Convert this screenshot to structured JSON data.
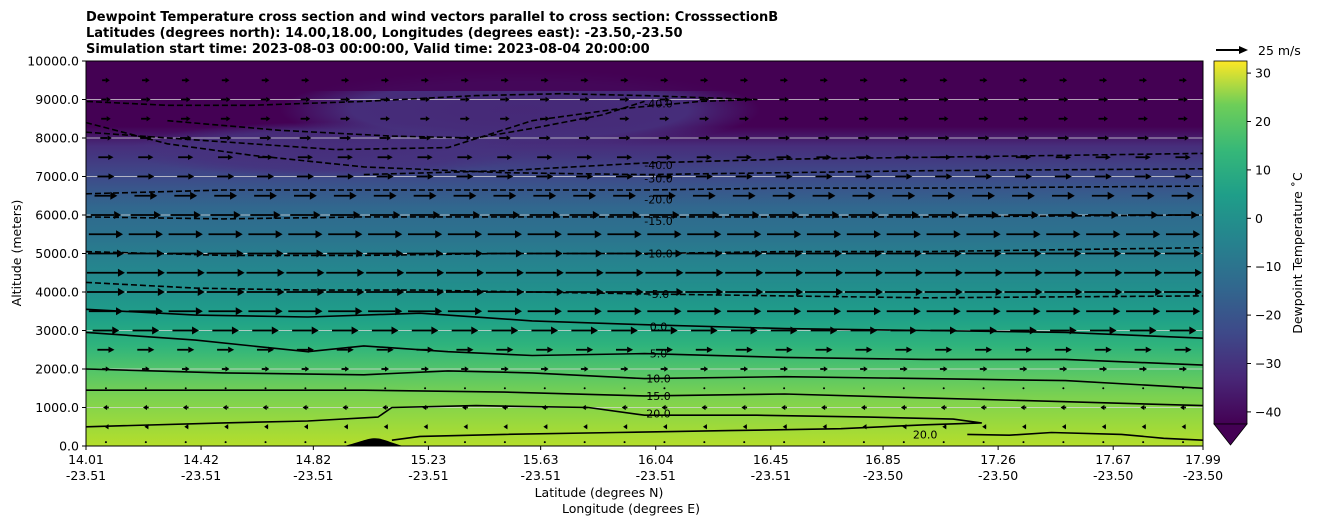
{
  "chart_data": {
    "type": "contour-cross-section",
    "title_lines": [
      "Dewpoint Temperature cross section and wind vectors parallel to cross section: CrosssectionB",
      "Latitudes (degrees north): 14.00,18.00, Longitudes (degrees east): -23.50,-23.50",
      "Simulation start time: 2023-08-03 00:00:00, Valid time: 2023-08-04 20:00:00"
    ],
    "ylabel": "Altitude (meters)",
    "xlabel_lines": [
      "Latitude (degrees N)",
      "Longitude (degrees E)"
    ],
    "ylim": [
      0,
      10000
    ],
    "y_ticks": [
      "0.0",
      "1000.0",
      "2000.0",
      "3000.0",
      "4000.0",
      "5000.0",
      "6000.0",
      "7000.0",
      "8000.0",
      "9000.0",
      "10000.0"
    ],
    "x_range": [
      14.01,
      17.99
    ],
    "x_ticks": [
      {
        "lat": "14.01",
        "lon": "-23.51"
      },
      {
        "lat": "14.42",
        "lon": "-23.51"
      },
      {
        "lat": "14.82",
        "lon": "-23.51"
      },
      {
        "lat": "15.23",
        "lon": "-23.51"
      },
      {
        "lat": "15.63",
        "lon": "-23.51"
      },
      {
        "lat": "16.04",
        "lon": "-23.51"
      },
      {
        "lat": "16.45",
        "lon": "-23.51"
      },
      {
        "lat": "16.85",
        "lon": "-23.50"
      },
      {
        "lat": "17.26",
        "lon": "-23.50"
      },
      {
        "lat": "17.67",
        "lon": "-23.50"
      },
      {
        "lat": "17.99",
        "lon": "-23.50"
      }
    ],
    "colorbar": {
      "label": "Dewpoint Temperature $^\\circ$C",
      "label_display": "Dewpoint Temperature ˚C",
      "range": [
        -42.5,
        32.5
      ],
      "ticks": [
        "−40",
        "−30",
        "−20",
        "−10",
        "0",
        "10",
        "20",
        "30"
      ],
      "extend": "min",
      "colormap": "viridis"
    },
    "quiver_key": "25 m/s",
    "contours": [
      {
        "label": "-40.0",
        "style": "dashed",
        "points": [
          [
            14.01,
            8150
          ],
          [
            14.4,
            7950
          ],
          [
            14.9,
            7700
          ],
          [
            15.3,
            7750
          ],
          [
            15.45,
            8100
          ],
          [
            15.6,
            8450
          ],
          [
            15.9,
            8750
          ],
          [
            16.2,
            8950
          ],
          [
            16.4,
            9000
          ],
          [
            16.0,
            9100
          ],
          [
            15.7,
            9150
          ],
          [
            15.4,
            9100
          ],
          [
            15.0,
            8950
          ],
          [
            14.6,
            8850
          ],
          [
            14.3,
            8850
          ],
          [
            14.01,
            8950
          ]
        ]
      },
      {
        "label": "-40.0",
        "style": "dashed",
        "points": [
          [
            14.3,
            8450
          ],
          [
            14.7,
            8200
          ],
          [
            15.1,
            8050
          ],
          [
            15.4,
            8000
          ],
          [
            15.6,
            8250
          ],
          [
            15.85,
            8600
          ],
          [
            16.0,
            8950
          ]
        ]
      },
      {
        "label": "-40.0",
        "style": "dashed",
        "points": [
          [
            15.0,
            7050
          ],
          [
            15.5,
            7150
          ],
          [
            16.0,
            7350
          ],
          [
            16.5,
            7450
          ],
          [
            17.0,
            7500
          ],
          [
            17.99,
            7600
          ]
        ]
      },
      {
        "label": "-30.0",
        "style": "dashed",
        "points": [
          [
            14.01,
            8400
          ],
          [
            14.3,
            7850
          ],
          [
            14.6,
            7550
          ],
          [
            15.0,
            7250
          ],
          [
            15.5,
            7100
          ],
          [
            16.0,
            7050
          ],
          [
            16.5,
            7100
          ],
          [
            17.0,
            7150
          ],
          [
            17.99,
            7200
          ]
        ]
      },
      {
        "label": "-20.0",
        "style": "dashed",
        "points": [
          [
            14.01,
            6550
          ],
          [
            14.5,
            6650
          ],
          [
            15.0,
            6650
          ],
          [
            15.5,
            6650
          ],
          [
            16.0,
            6650
          ],
          [
            16.5,
            6700
          ],
          [
            17.0,
            6700
          ],
          [
            17.99,
            6750
          ]
        ]
      },
      {
        "label": "-15.0",
        "style": "dashed",
        "points": [
          [
            14.01,
            5950
          ],
          [
            14.5,
            5900
          ],
          [
            15.0,
            5950
          ],
          [
            15.5,
            5950
          ],
          [
            16.0,
            5950
          ],
          [
            16.5,
            5950
          ],
          [
            17.0,
            5950
          ],
          [
            17.99,
            6000
          ]
        ]
      },
      {
        "label": "-10.0",
        "style": "dashed",
        "points": [
          [
            14.01,
            5050
          ],
          [
            14.5,
            4950
          ],
          [
            15.0,
            4950
          ],
          [
            15.5,
            5000
          ],
          [
            16.0,
            5000
          ],
          [
            16.5,
            5050
          ],
          [
            17.0,
            5050
          ],
          [
            17.99,
            5150
          ]
        ]
      },
      {
        "label": "-5.0",
        "style": "dashed",
        "points": [
          [
            14.01,
            4250
          ],
          [
            14.4,
            4100
          ],
          [
            14.8,
            4050
          ],
          [
            15.2,
            4050
          ],
          [
            15.6,
            4000
          ],
          [
            16.0,
            3950
          ],
          [
            16.5,
            3900
          ],
          [
            17.0,
            3850
          ],
          [
            17.99,
            3900
          ]
        ]
      },
      {
        "label": "0.0",
        "style": "solid",
        "points": [
          [
            14.01,
            3550
          ],
          [
            14.4,
            3400
          ],
          [
            14.8,
            3350
          ],
          [
            15.2,
            3450
          ],
          [
            15.6,
            3250
          ],
          [
            16.0,
            3150
          ],
          [
            16.5,
            3050
          ],
          [
            17.0,
            3000
          ],
          [
            17.5,
            2950
          ],
          [
            17.99,
            2800
          ]
        ]
      },
      {
        "label": "5.0",
        "style": "solid",
        "points": [
          [
            14.01,
            2950
          ],
          [
            14.4,
            2750
          ],
          [
            14.8,
            2450
          ],
          [
            15.0,
            2600
          ],
          [
            15.3,
            2450
          ],
          [
            15.6,
            2350
          ],
          [
            16.0,
            2400
          ],
          [
            16.5,
            2300
          ],
          [
            17.0,
            2250
          ],
          [
            17.5,
            2250
          ],
          [
            17.99,
            2100
          ]
        ]
      },
      {
        "label": "10.0",
        "style": "solid",
        "points": [
          [
            14.01,
            2000
          ],
          [
            14.5,
            1900
          ],
          [
            15.0,
            1850
          ],
          [
            15.3,
            1950
          ],
          [
            15.6,
            1900
          ],
          [
            16.0,
            1750
          ],
          [
            16.5,
            1800
          ],
          [
            17.0,
            1750
          ],
          [
            17.5,
            1700
          ],
          [
            17.99,
            1500
          ]
        ]
      },
      {
        "label": "15.0",
        "style": "solid",
        "points": [
          [
            14.01,
            1450
          ],
          [
            14.5,
            1450
          ],
          [
            15.0,
            1450
          ],
          [
            15.5,
            1400
          ],
          [
            16.0,
            1300
          ],
          [
            16.5,
            1350
          ],
          [
            17.0,
            1250
          ],
          [
            17.5,
            1150
          ],
          [
            17.99,
            1050
          ]
        ]
      },
      {
        "label": "20.0",
        "style": "solid",
        "points": [
          [
            14.01,
            500
          ],
          [
            14.5,
            600
          ],
          [
            14.8,
            650
          ],
          [
            15.05,
            750
          ],
          [
            15.1,
            1000
          ],
          [
            15.4,
            1050
          ],
          [
            15.8,
            1000
          ],
          [
            16.0,
            800
          ],
          [
            16.4,
            800
          ],
          [
            16.8,
            750
          ],
          [
            17.1,
            700
          ],
          [
            17.2,
            600
          ],
          [
            17.0,
            550
          ],
          [
            16.7,
            450
          ],
          [
            16.3,
            400
          ],
          [
            15.9,
            350
          ],
          [
            15.5,
            300
          ],
          [
            15.2,
            250
          ],
          [
            15.1,
            150
          ]
        ]
      },
      {
        "label": "20.0",
        "style": "solid",
        "points": [
          [
            17.15,
            300
          ],
          [
            17.3,
            280
          ],
          [
            17.45,
            350
          ],
          [
            17.7,
            300
          ],
          [
            17.85,
            200
          ],
          [
            17.99,
            150
          ]
        ]
      }
    ],
    "contour_labels": [
      {
        "text": "-40.0",
        "lat": 16.05,
        "alt": 8900
      },
      {
        "text": "-40.0",
        "lat": 16.05,
        "alt": 7300
      },
      {
        "text": "-30.0",
        "lat": 16.05,
        "alt": 6950
      },
      {
        "text": "-20.0",
        "lat": 16.05,
        "alt": 6400
      },
      {
        "text": "-15.0",
        "lat": 16.05,
        "alt": 5850
      },
      {
        "text": "-10.0",
        "lat": 16.05,
        "alt": 5000
      },
      {
        "text": "-5.0",
        "lat": 16.05,
        "alt": 3950
      },
      {
        "text": "0.0",
        "lat": 16.05,
        "alt": 3100
      },
      {
        "text": "5.0",
        "lat": 16.05,
        "alt": 2400
      },
      {
        "text": "10.0",
        "lat": 16.05,
        "alt": 1750
      },
      {
        "text": "15.0",
        "lat": 16.05,
        "alt": 1300
      },
      {
        "text": "20.0",
        "lat": 16.05,
        "alt": 850
      },
      {
        "text": "20.0",
        "lat": 17.0,
        "alt": 300
      }
    ],
    "terrain": {
      "start_lat": 14.93,
      "peak_lat": 15.04,
      "end_lat": 15.14,
      "peak_alt": 200
    },
    "wind_levels": [
      {
        "alt": 100,
        "u": 0.5
      },
      {
        "alt": 500,
        "u": -1.5
      },
      {
        "alt": 1000,
        "u": -3
      },
      {
        "alt": 1500,
        "u": 0.5
      },
      {
        "alt": 2000,
        "u": 4
      },
      {
        "alt": 2500,
        "u": 9
      },
      {
        "alt": 3000,
        "u": 14
      },
      {
        "alt": 3500,
        "u": 18
      },
      {
        "alt": 4000,
        "u": 20
      },
      {
        "alt": 4500,
        "u": 20
      },
      {
        "alt": 5000,
        "u": 19
      },
      {
        "alt": 5500,
        "u": 18
      },
      {
        "alt": 6000,
        "u": 16
      },
      {
        "alt": 6500,
        "u": 12
      },
      {
        "alt": 7000,
        "u": 9
      },
      {
        "alt": 7500,
        "u": 8
      },
      {
        "alt": 8000,
        "u": 6
      },
      {
        "alt": 8500,
        "u": 5
      },
      {
        "alt": 9000,
        "u": 5
      },
      {
        "alt": 9500,
        "u": 4
      }
    ]
  }
}
